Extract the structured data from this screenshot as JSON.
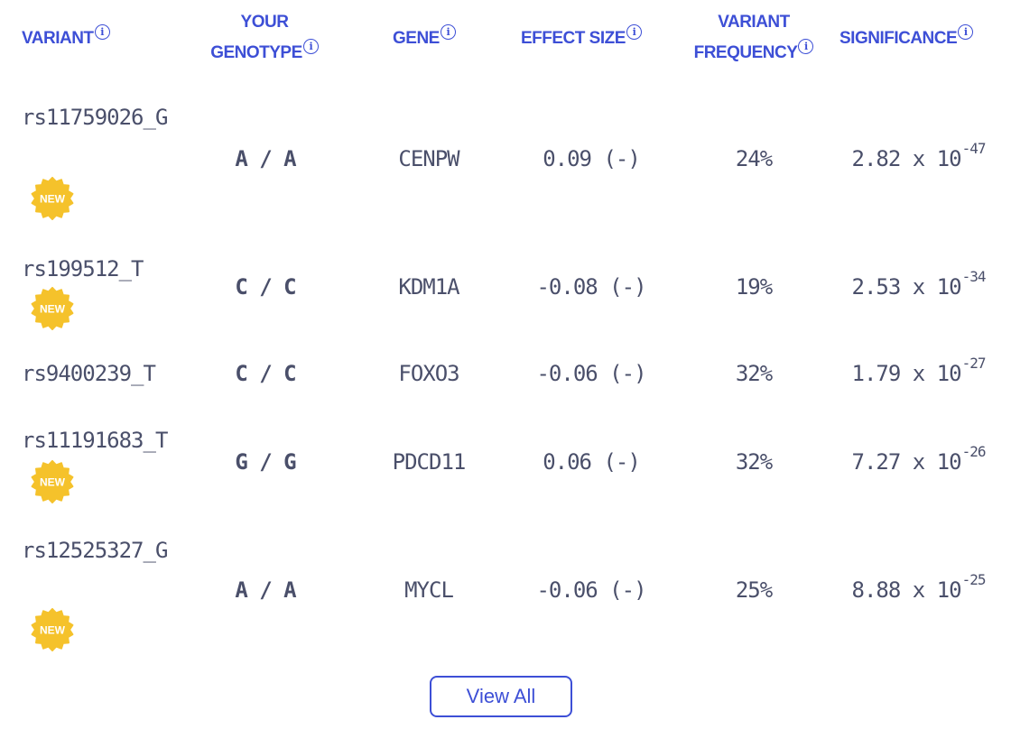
{
  "headers": {
    "variant": "VARIANT",
    "genotype_line1": "YOUR",
    "genotype_line2": "GENOTYPE",
    "gene": "GENE",
    "effect": "EFFECT SIZE",
    "frequency_line1": "VARIANT",
    "frequency_line2": "FREQUENCY",
    "significance": "SIGNIFICANCE",
    "info_glyph": "i"
  },
  "rows": [
    {
      "variant": "rs11759026_G",
      "genotype": "A / A",
      "gene": "CENPW",
      "effect": "0.09 (-)",
      "frequency": "24%",
      "sig_base": "2.82 x 10",
      "sig_exp": "-47",
      "is_new": true
    },
    {
      "variant": "rs199512_T",
      "genotype": "C / C",
      "gene": "KDM1A",
      "effect": "-0.08 (-)",
      "frequency": "19%",
      "sig_base": "2.53 x 10",
      "sig_exp": "-34",
      "is_new": true
    },
    {
      "variant": "rs9400239_T",
      "genotype": "C / C",
      "gene": "FOXO3",
      "effect": "-0.06 (-)",
      "frequency": "32%",
      "sig_base": "1.79 x 10",
      "sig_exp": "-27",
      "is_new": false
    },
    {
      "variant": "rs11191683_T",
      "genotype": "G / G",
      "gene": "PDCD11",
      "effect": "0.06 (-)",
      "frequency": "32%",
      "sig_base": "7.27 x 10",
      "sig_exp": "-26",
      "is_new": true
    },
    {
      "variant": "rs12525327_G",
      "genotype": "A / A",
      "gene": "MYCL",
      "effect": "-0.06 (-)",
      "frequency": "25%",
      "sig_base": "8.88 x 10",
      "sig_exp": "-25",
      "is_new": true
    }
  ],
  "badge_text": "NEW",
  "badge_color": "#f5c22b",
  "accent_color": "#3d4fd6",
  "view_all_label": "View All"
}
